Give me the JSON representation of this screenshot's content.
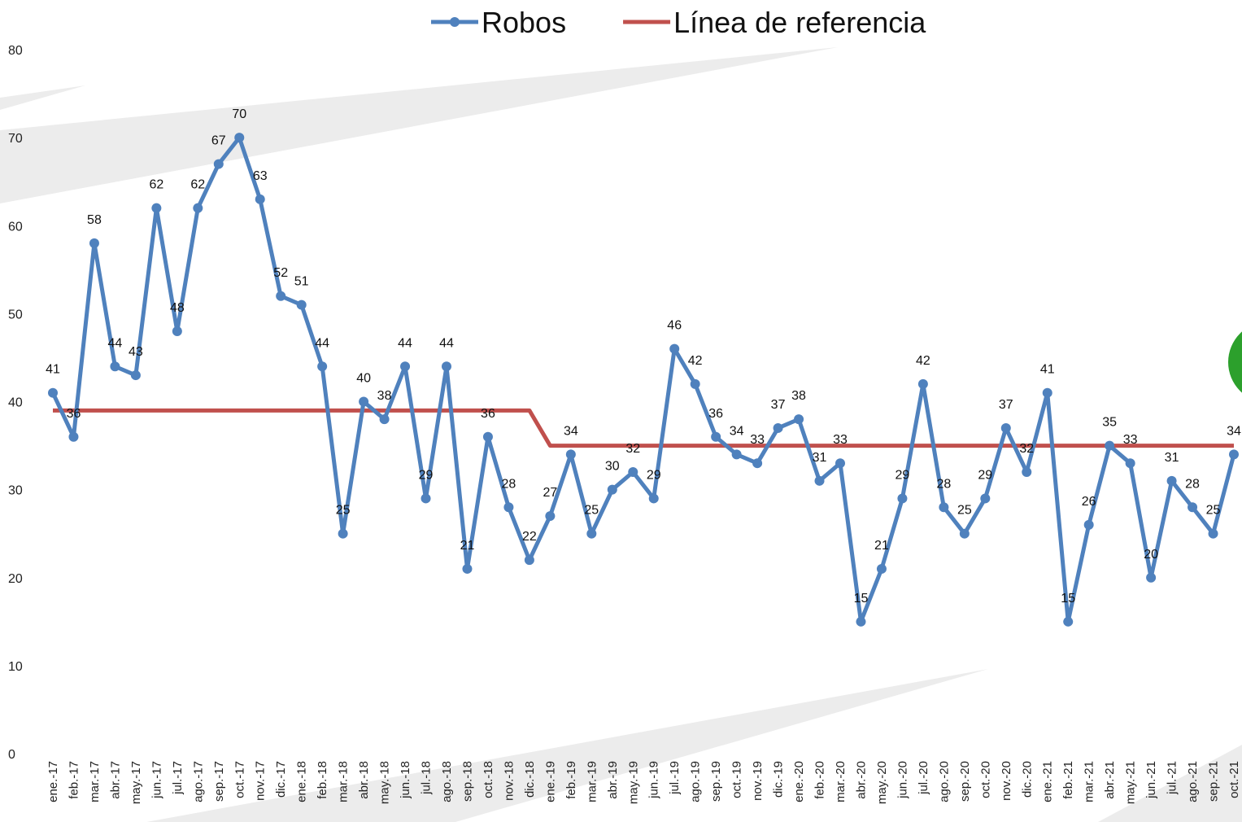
{
  "chart_data": {
    "type": "line",
    "categories": [
      "ene.-17",
      "feb.-17",
      "mar.-17",
      "abr.-17",
      "may.-17",
      "jun.-17",
      "jul.-17",
      "ago.-17",
      "sep.-17",
      "oct.-17",
      "nov.-17",
      "dic.-17",
      "ene.-18",
      "feb.-18",
      "mar.-18",
      "abr.-18",
      "may.-18",
      "jun.-18",
      "jul.-18",
      "ago.-18",
      "sep.-18",
      "oct.-18",
      "nov.-18",
      "dic.-18",
      "ene.-19",
      "feb.-19",
      "mar.-19",
      "abr.-19",
      "may.-19",
      "jun.-19",
      "jul.-19",
      "ago.-19",
      "sep.-19",
      "oct.-19",
      "nov.-19",
      "dic.-19",
      "ene.-20",
      "feb.-20",
      "mar.-20",
      "abr.-20",
      "may.-20",
      "jun.-20",
      "jul.-20",
      "ago.-20",
      "sep.-20",
      "oct.-20",
      "nov.-20",
      "dic.-20",
      "ene.-21",
      "feb.-21",
      "mar.-21",
      "abr.-21",
      "may.-21",
      "jun.-21",
      "jul.-21",
      "ago.-21",
      "sep.-21",
      "oct.-21"
    ],
    "series": [
      {
        "name": "Robos",
        "color": "#4f81bd",
        "markers": true,
        "data_labels": true,
        "values": [
          41,
          36,
          58,
          44,
          43,
          62,
          48,
          62,
          67,
          70,
          63,
          52,
          51,
          44,
          25,
          40,
          38,
          44,
          29,
          44,
          21,
          36,
          28,
          22,
          27,
          34,
          25,
          30,
          32,
          29,
          46,
          42,
          36,
          34,
          33,
          37,
          38,
          31,
          33,
          15,
          21,
          29,
          42,
          28,
          25,
          29,
          37,
          32,
          41,
          15,
          26,
          35,
          33,
          20,
          31,
          28,
          25,
          34
        ]
      },
      {
        "name": "Línea de referencia",
        "color": "#c0504d",
        "markers": false,
        "data_labels": false,
        "values": [
          39,
          39,
          39,
          39,
          39,
          39,
          39,
          39,
          39,
          39,
          39,
          39,
          39,
          39,
          39,
          39,
          39,
          39,
          39,
          39,
          39,
          39,
          39,
          39,
          35,
          35,
          35,
          35,
          35,
          35,
          35,
          35,
          35,
          35,
          35,
          35,
          35,
          35,
          35,
          35,
          35,
          35,
          35,
          35,
          35,
          35,
          35,
          35,
          35,
          35,
          35,
          35,
          35,
          35,
          35,
          35,
          35,
          35
        ]
      }
    ],
    "ylim": [
      0,
      80
    ],
    "yticks": [
      0,
      10,
      20,
      30,
      40,
      50,
      60,
      70,
      80
    ],
    "grid": false,
    "legend": "top"
  }
}
